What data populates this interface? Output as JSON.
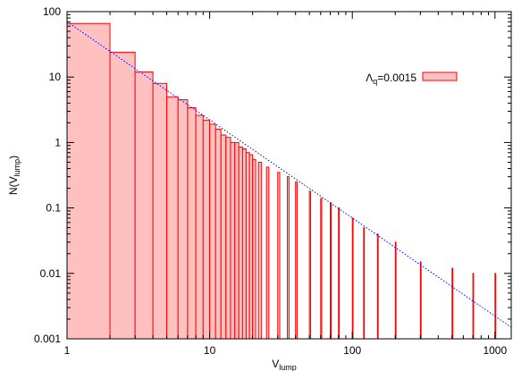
{
  "chart_data": {
    "type": "bar",
    "xlabel_main": "V",
    "xlabel_sub": "lump",
    "ylabel_main": "N(V",
    "ylabel_sub": "lump",
    "ylabel_close": ")",
    "x_scale": "log",
    "y_scale": "log",
    "xlim": [
      1,
      1300
    ],
    "ylim": [
      0.001,
      100
    ],
    "x_ticks": [
      {
        "value": 1,
        "label": "1"
      },
      {
        "value": 10,
        "label": "10"
      },
      {
        "value": 100,
        "label": "100"
      },
      {
        "value": 1000,
        "label": "1000"
      }
    ],
    "y_ticks": [
      {
        "value": 100,
        "label": "100"
      },
      {
        "value": 10,
        "label": "10"
      },
      {
        "value": 1,
        "label": "1"
      },
      {
        "value": 0.1,
        "label": "0.1"
      },
      {
        "value": 0.01,
        "label": "0.01"
      },
      {
        "value": 0.001,
        "label": "0.001"
      }
    ],
    "grid": false,
    "legend_position": "top-right",
    "series": [
      {
        "name_main": "Λ",
        "name_sub": "q",
        "name_rest": "=0.0015",
        "kind": "histogram",
        "fill_color": "#ffc0c0",
        "line_color": "#ff0000",
        "bins": [
          {
            "x": 1,
            "y": 66
          },
          {
            "x": 2,
            "y": 24
          },
          {
            "x": 3,
            "y": 12
          },
          {
            "x": 4,
            "y": 8
          },
          {
            "x": 5,
            "y": 5
          },
          {
            "x": 6,
            "y": 4.5
          },
          {
            "x": 7,
            "y": 3.4
          },
          {
            "x": 8,
            "y": 2.6
          },
          {
            "x": 9,
            "y": 2.2
          },
          {
            "x": 10,
            "y": 1.9
          },
          {
            "x": 11,
            "y": 1.6
          },
          {
            "x": 12,
            "y": 1.3
          },
          {
            "x": 13,
            "y": 1.2
          },
          {
            "x": 14,
            "y": 1.0
          },
          {
            "x": 15,
            "y": 1.0
          },
          {
            "x": 16,
            "y": 0.85
          },
          {
            "x": 17,
            "y": 0.8
          },
          {
            "x": 18,
            "y": 0.7
          },
          {
            "x": 19,
            "y": 0.65
          },
          {
            "x": 20,
            "y": 0.55
          },
          {
            "x": 22,
            "y": 0.5
          },
          {
            "x": 25,
            "y": 0.42
          },
          {
            "x": 30,
            "y": 0.35
          },
          {
            "x": 35,
            "y": 0.3
          },
          {
            "x": 40,
            "y": 0.25
          },
          {
            "x": 50,
            "y": 0.18
          },
          {
            "x": 60,
            "y": 0.14
          },
          {
            "x": 70,
            "y": 0.12
          },
          {
            "x": 80,
            "y": 0.1
          },
          {
            "x": 100,
            "y": 0.07
          },
          {
            "x": 120,
            "y": 0.05
          },
          {
            "x": 150,
            "y": 0.04
          },
          {
            "x": 200,
            "y": 0.03
          },
          {
            "x": 300,
            "y": 0.015
          },
          {
            "x": 500,
            "y": 0.012
          },
          {
            "x": 700,
            "y": 0.01
          },
          {
            "x": 1000,
            "y": 0.01
          }
        ]
      }
    ],
    "fit_line": {
      "kind": "power-law",
      "color": "#0000ff",
      "style": "dotted",
      "from": {
        "x": 1,
        "y": 70
      },
      "to": {
        "x": 1300,
        "y": 0.0015
      }
    }
  }
}
